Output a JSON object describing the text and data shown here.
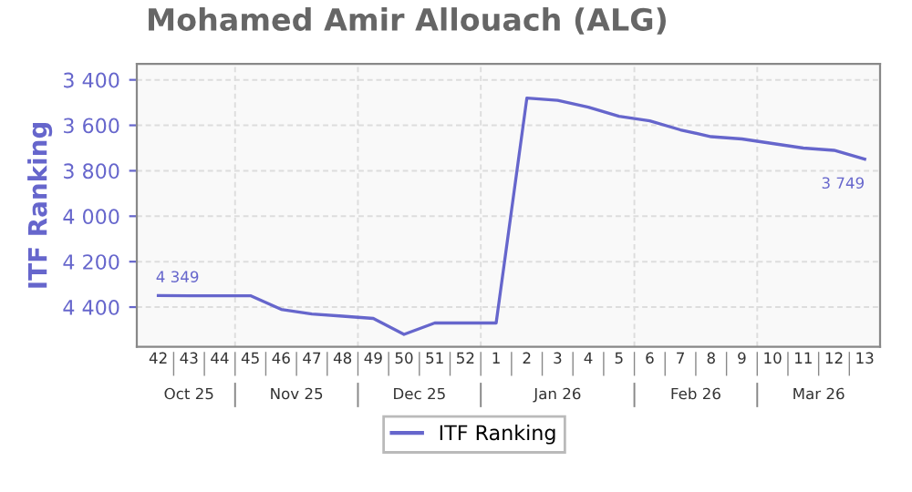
{
  "chart_data": {
    "type": "line",
    "title": "Mohamed Amir Allouach (ALG)",
    "ylabel": "ITF Ranking",
    "categories": [
      "42",
      "43",
      "44",
      "45",
      "46",
      "47",
      "48",
      "49",
      "50",
      "51",
      "52",
      "1",
      "2",
      "3",
      "4",
      "5",
      "6",
      "7",
      "8",
      "9",
      "10",
      "11",
      "12",
      "13"
    ],
    "series": [
      {
        "name": "ITF Ranking",
        "color": "#6666cc",
        "values": [
          4349,
          4350,
          4350,
          4350,
          4410,
          4430,
          4440,
          4450,
          4520,
          4470,
          4470,
          4470,
          3480,
          3490,
          3520,
          3560,
          3580,
          3620,
          3650,
          3660,
          3680,
          3700,
          3710,
          3749
        ],
        "value_labels": [
          "4 349",
          null,
          null,
          null,
          null,
          null,
          null,
          null,
          null,
          null,
          null,
          null,
          null,
          null,
          null,
          null,
          null,
          null,
          null,
          null,
          null,
          null,
          null,
          "3 749"
        ]
      }
    ],
    "ylim": [
      4575,
      3330
    ],
    "yticks": [
      {
        "value": 3400,
        "label": "3 400"
      },
      {
        "value": 3600,
        "label": "3 600"
      },
      {
        "value": 3800,
        "label": "3 800"
      },
      {
        "value": 4000,
        "label": "4 000"
      },
      {
        "value": 4200,
        "label": "4 200"
      },
      {
        "value": 4400,
        "label": "4 400"
      }
    ],
    "annotations": [
      "Oct 25",
      "Nov 25",
      "Dec 25",
      "Jan 26",
      "Feb 26",
      "Mar 26"
    ],
    "grid": true,
    "legend": "bottom",
    "marker": "none",
    "line_style": "solid"
  }
}
